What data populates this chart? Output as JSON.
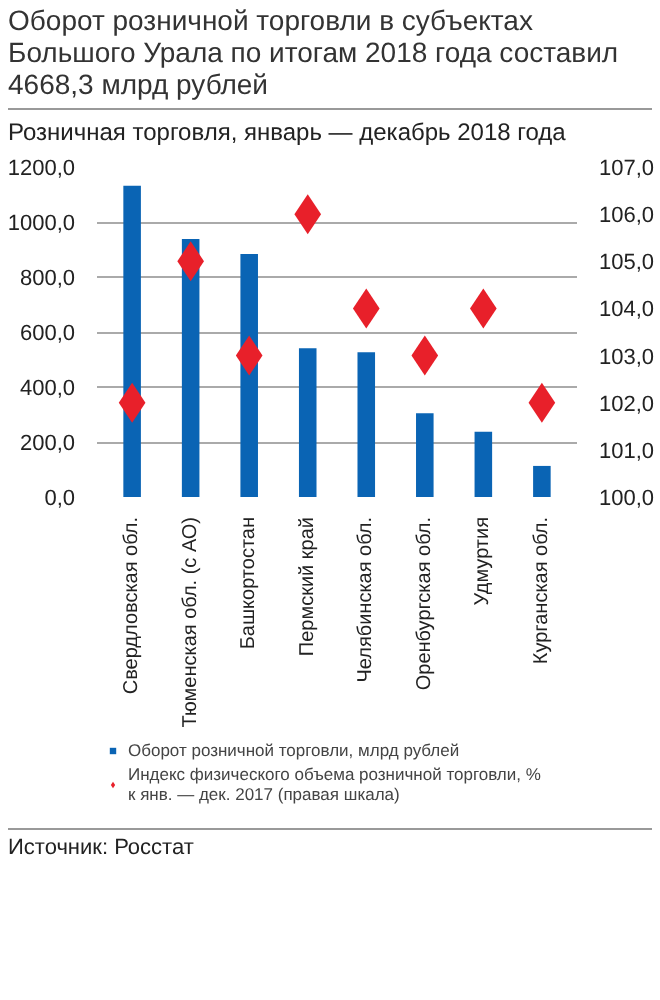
{
  "chart_data": {
    "type": "bar",
    "title": "Оборот розничной торговли в субъектах Большого Урала по итогам 2018 года составил 4668,3 млрд рублей",
    "subtitle": "Розничная торговля, январь — декабрь 2018 года",
    "categories": [
      "Свердловская обл.",
      "Тюменская обл. (с АО)",
      "Башкортостан",
      "Пермский край",
      "Челябинская обл.",
      "Оренбургская обл.",
      "Удмуртия",
      "Курганская обл."
    ],
    "series": [
      {
        "name": "Оборот розничной торговли, млрд рублей",
        "color": "#0a64b4",
        "values": [
          1132,
          938,
          884,
          541,
          526,
          305,
          237,
          113
        ]
      },
      {
        "name": "Индекс физического объема розничной торговли, % к янв. — дек. 2017 (правая шкала)",
        "type": "scatter",
        "axis": "y2",
        "marker": "diamond",
        "color": "#e8202a",
        "values": [
          102.0,
          105.0,
          103.0,
          106.0,
          104.0,
          103.0,
          104.0,
          102.0
        ]
      }
    ],
    "ylim": [
      0,
      1200
    ],
    "yticks": [
      {
        "value": 0,
        "label": "0,0"
      },
      {
        "value": 200,
        "label": "200,0"
      },
      {
        "value": 400,
        "label": "400,0"
      },
      {
        "value": 600,
        "label": "600,0"
      },
      {
        "value": 800,
        "label": "800,0"
      },
      {
        "value": 1000,
        "label": "1000,0"
      },
      {
        "value": 1200,
        "label": "1200,0"
      }
    ],
    "y2lim": [
      100,
      107
    ],
    "y2ticks": [
      {
        "value": 100,
        "label": "100,0"
      },
      {
        "value": 101,
        "label": "101,0"
      },
      {
        "value": 102,
        "label": "102,0"
      },
      {
        "value": 103,
        "label": "103,0"
      },
      {
        "value": 104,
        "label": "104,0"
      },
      {
        "value": 105,
        "label": "105,0"
      },
      {
        "value": 106,
        "label": "106,0"
      },
      {
        "value": 107,
        "label": "107,0"
      }
    ],
    "grid": "y",
    "legend": "bottom",
    "annotations": [
      "Источник: Росстат"
    ]
  }
}
